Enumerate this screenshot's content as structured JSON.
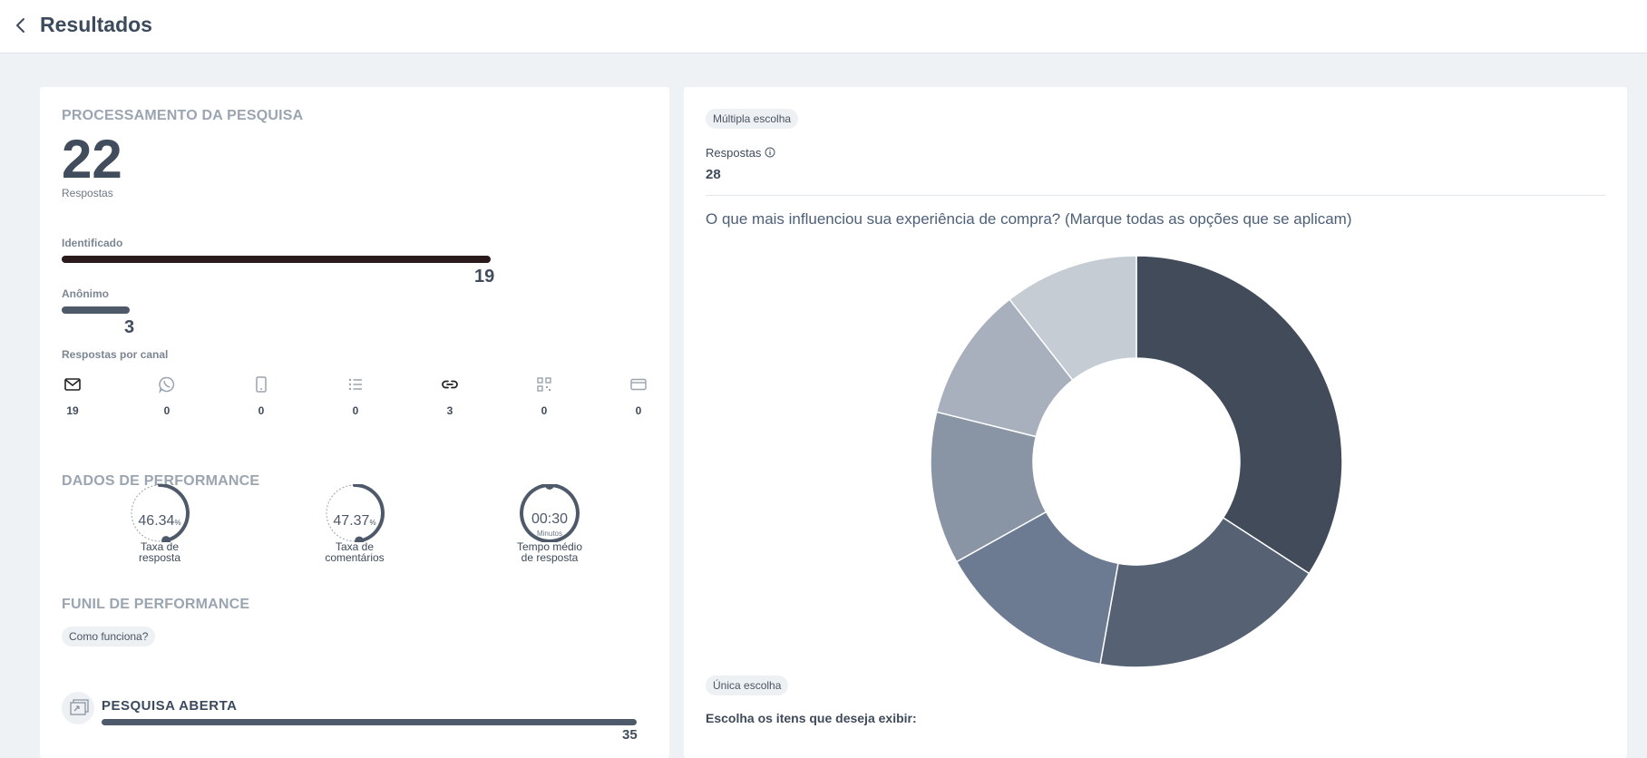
{
  "header": {
    "title": "Resultados"
  },
  "left": {
    "processing_title": "PROCESSAMENTO DA PESQUISA",
    "total": "22",
    "total_label": "Respostas",
    "identified": {
      "label": "Identificado",
      "value": "19",
      "fraction": 0.8636
    },
    "anonymous": {
      "label": "Anônimo",
      "value": "3",
      "fraction": 0.1364
    },
    "channels_title": "Respostas por canal",
    "channels": [
      {
        "icon": "mail-icon",
        "value": "19"
      },
      {
        "icon": "whatsapp-icon",
        "value": "0"
      },
      {
        "icon": "mobile-icon",
        "value": "0"
      },
      {
        "icon": "list-icon",
        "value": "0"
      },
      {
        "icon": "link-icon",
        "value": "3"
      },
      {
        "icon": "qrcode-icon",
        "value": "0"
      },
      {
        "icon": "card-icon",
        "value": "0"
      }
    ],
    "performance_title": "DADOS DE PERFORMANCE",
    "gauges": [
      {
        "value": "46.34",
        "unit": "%",
        "sub": "",
        "label1": "Taxa de",
        "label2": "resposta",
        "fraction": 0.4634
      },
      {
        "value": "47.37",
        "unit": "%",
        "sub": "",
        "label1": "Taxa de",
        "label2": "comentários",
        "fraction": 0.4737
      },
      {
        "value": "00:30",
        "unit": "",
        "sub": "Minutos",
        "label1": "Tempo médio",
        "label2": "de resposta",
        "fraction": 1.0
      }
    ],
    "funnel_title": "FUNIL DE PERFORMANCE",
    "how_it_works": "Como funciona?",
    "funnel_item": {
      "label": "PESQUISA ABERTA",
      "value": "35",
      "fraction": 1.0
    }
  },
  "right": {
    "type_chip": "Múltipla escolha",
    "responses_label": "Respostas",
    "responses_value": "28",
    "question": "O que mais influenciou sua experiência de compra? (Marque todas as opções que se aplicam)",
    "single_chip": "Única escolha",
    "choose_label": "Escolha os itens que deseja exibir:"
  },
  "colors": {
    "accent": "#2b1a1c",
    "bar": "#4e5a6a",
    "gauge": "#4e5a6a"
  },
  "chart_data": {
    "type": "pie",
    "title": "",
    "donut": true,
    "categories": [
      "",
      "",
      "",
      "",
      "",
      ""
    ],
    "values": [
      9.7,
      5.3,
      4.0,
      3.4,
      3.0,
      3.0
    ],
    "colors": [
      "#414b5a",
      "#566273",
      "#6c7a92",
      "#8994a5",
      "#a7b0bc",
      "#c5ccd4"
    ]
  }
}
